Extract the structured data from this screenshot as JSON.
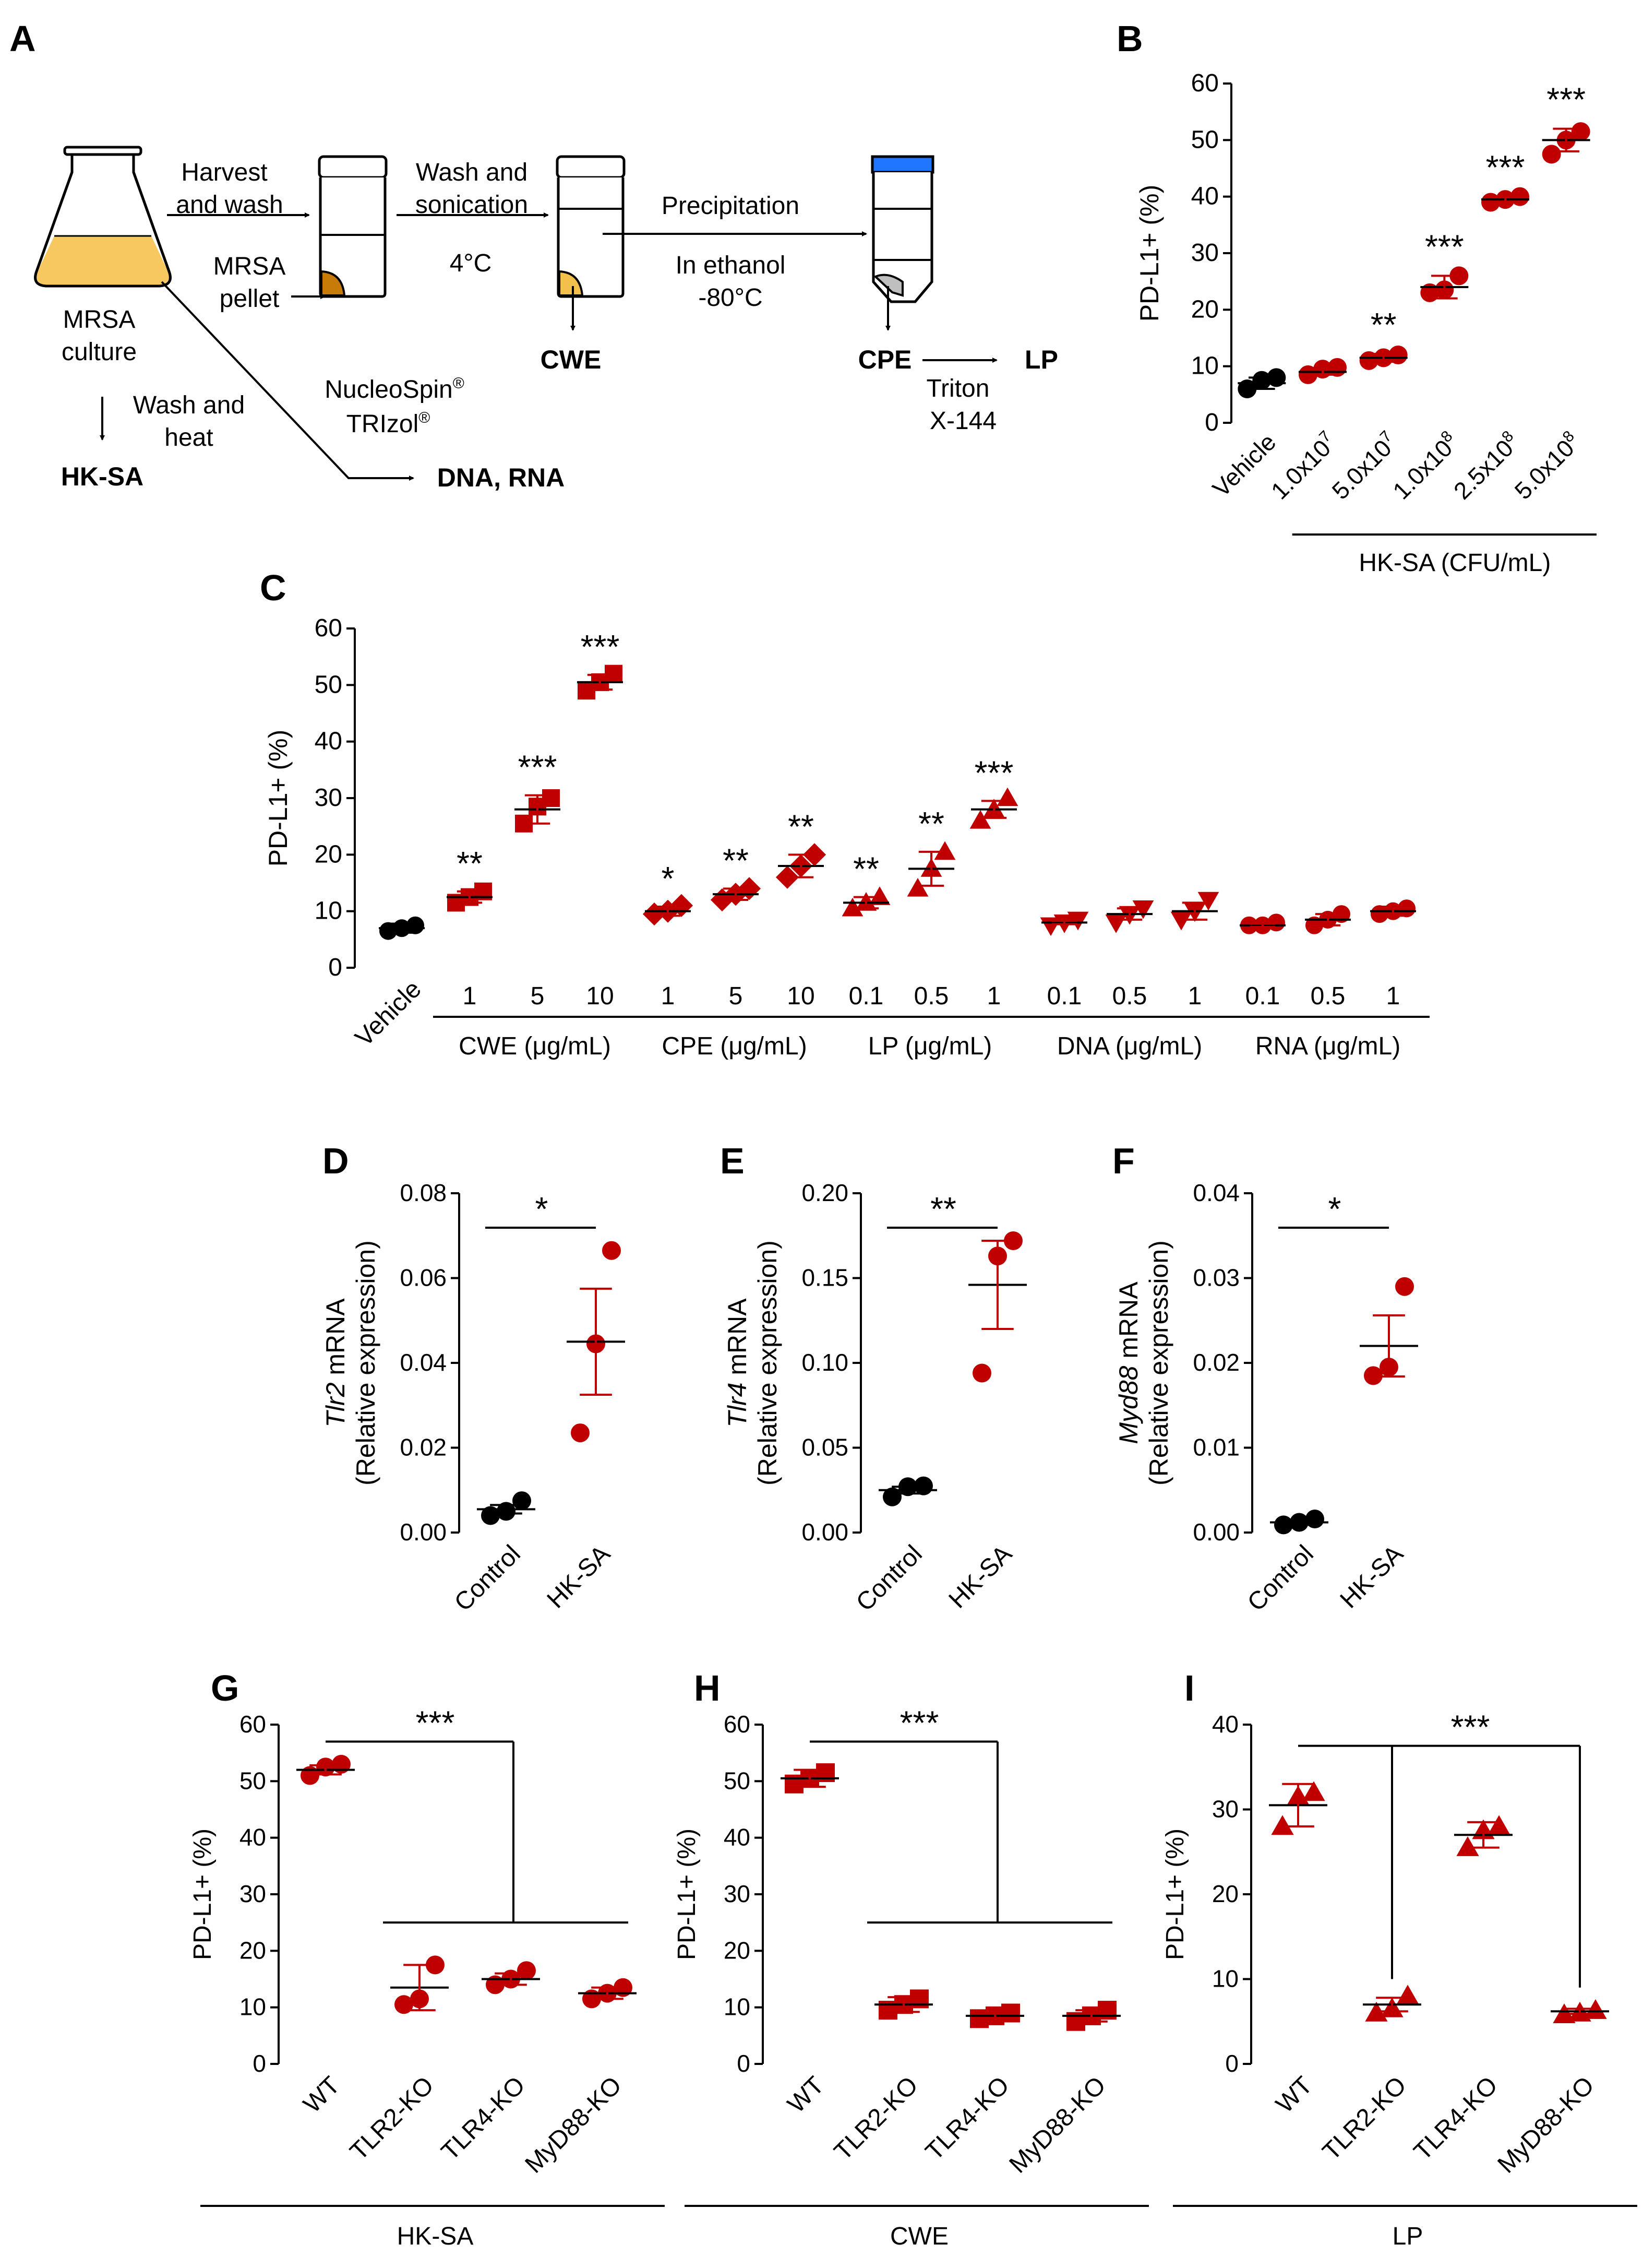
{
  "figure": {
    "panel_letters": {
      "A": "A",
      "B": "B",
      "C": "C",
      "D": "D",
      "E": "E",
      "F": "F",
      "G": "G",
      "H": "H",
      "I": "I"
    },
    "colors": {
      "red": "#c00000",
      "black": "#000000",
      "flask_fill": "#f6c85f",
      "pellet": "#c97b0a",
      "extract": "#f2c04b",
      "blue_cap": "#2176ff",
      "grey": "#bfbfbf"
    }
  },
  "schematic": {
    "flask_label": [
      "MRSA",
      "culture"
    ],
    "step1_label": [
      "Harvest",
      "and wash"
    ],
    "pellet_label": [
      "MRSA",
      "pellet"
    ],
    "step2_label": [
      "Wash and",
      "sonication"
    ],
    "step2_temp": "4°C",
    "step3_label": "Precipitation",
    "step3_sub": [
      "In ethanol",
      "-80°C"
    ],
    "cwe": "CWE",
    "cpe": "CPE",
    "lp": "LP",
    "triton": [
      "Triton",
      "X-144"
    ],
    "heat_label": [
      "Wash and",
      "heat"
    ],
    "hksa": "HK-SA",
    "kits": [
      "NucleoSpin",
      "TRIzol"
    ],
    "reg_mark": "®",
    "dna_rna": "DNA, RNA"
  },
  "chart_data": [
    {
      "panel": "B",
      "type": "scatter",
      "ylabel": "PD-L1+ (%)",
      "ylim": [
        0,
        60
      ],
      "yticks": [
        0,
        10,
        20,
        30,
        40,
        50,
        60
      ],
      "categories": [
        "Vehicle",
        "1.0x10^7",
        "5.0x10^7",
        "1.0x10^8",
        "2.5x10^8",
        "5.0x10^8"
      ],
      "category_display": [
        [
          "Vehicle",
          ""
        ],
        [
          "1.0x10",
          "7"
        ],
        [
          "5.0x10",
          "7"
        ],
        [
          "1.0x10",
          "8"
        ],
        [
          "2.5x10",
          "8"
        ],
        [
          "5.0x10",
          "8"
        ]
      ],
      "group_label": "HK-SA (CFU/mL)",
      "colors": [
        "black",
        "red",
        "red",
        "red",
        "red",
        "red"
      ],
      "means": [
        7,
        9,
        11.5,
        24,
        39.5,
        50
      ],
      "sems": [
        1,
        0.5,
        0.7,
        2,
        0.5,
        2
      ],
      "points": [
        [
          6,
          7.5,
          8
        ],
        [
          8.5,
          9.5,
          9.8
        ],
        [
          11,
          11.5,
          12
        ],
        [
          23,
          23.5,
          26
        ],
        [
          39,
          39.5,
          40
        ],
        [
          47.5,
          50,
          51.5
        ]
      ],
      "marker": "circle",
      "significance": [
        "",
        "",
        "**",
        "***",
        "***",
        "***"
      ]
    },
    {
      "panel": "C",
      "type": "scatter",
      "ylabel": "PD-L1+ (%)",
      "ylim": [
        0,
        60
      ],
      "yticks": [
        0,
        10,
        20,
        30,
        40,
        50,
        60
      ],
      "categories": [
        "Vehicle",
        "1",
        "5",
        "10",
        "1",
        "5",
        "10",
        "0.1",
        "0.5",
        "1",
        "0.1",
        "0.5",
        "1",
        "0.1",
        "0.5",
        "1"
      ],
      "groups": [
        {
          "label": "CWE (μg/mL)",
          "from": 1,
          "to": 3
        },
        {
          "label": "CPE (μg/mL)",
          "from": 4,
          "to": 6
        },
        {
          "label": "LP (μg/mL)",
          "from": 7,
          "to": 9
        },
        {
          "label": "DNA (μg/mL)",
          "from": 10,
          "to": 12
        },
        {
          "label": "RNA (μg/mL)",
          "from": 13,
          "to": 15
        }
      ],
      "markers": [
        "circle",
        "square",
        "square",
        "square",
        "diamond",
        "diamond",
        "diamond",
        "triangle",
        "triangle",
        "triangle",
        "tri_down",
        "tri_down",
        "tri_down",
        "circle",
        "circle",
        "circle"
      ],
      "colors": [
        "black",
        "red",
        "red",
        "red",
        "red",
        "red",
        "red",
        "red",
        "red",
        "red",
        "red",
        "red",
        "red",
        "red",
        "red",
        "red"
      ],
      "means": [
        7,
        12.5,
        28,
        50.5,
        10,
        13,
        18,
        11.5,
        17.5,
        28,
        8,
        9.5,
        10,
        7.5,
        8.5,
        10
      ],
      "sems": [
        0.8,
        1,
        2.5,
        1.3,
        0.8,
        1,
        2,
        1,
        3,
        1.5,
        0.3,
        1,
        1.5,
        0.3,
        1,
        0.8
      ],
      "points": [
        [
          6.5,
          7,
          7.5
        ],
        [
          11.5,
          12.5,
          13.5
        ],
        [
          25.5,
          28.5,
          30
        ],
        [
          49,
          50.5,
          52
        ],
        [
          9.5,
          10,
          11
        ],
        [
          12,
          13,
          14
        ],
        [
          16,
          18,
          20
        ],
        [
          10.5,
          11.5,
          12.5
        ],
        [
          14,
          17.5,
          20.5
        ],
        [
          26,
          28,
          30
        ],
        [
          7.5,
          8,
          8.5
        ],
        [
          8,
          9.5,
          10.5
        ],
        [
          8.5,
          10,
          12
        ],
        [
          7.5,
          7.5,
          8
        ],
        [
          7.5,
          8.5,
          9.5
        ],
        [
          9.5,
          10,
          10.5
        ]
      ],
      "significance": [
        "",
        "**",
        "***",
        "***",
        "*",
        "**",
        "**",
        "**",
        "**",
        "***",
        "",
        "",
        "",
        "",
        "",
        ""
      ]
    },
    {
      "panel": "D",
      "type": "scatter",
      "ylabel_italic": "Tlr2",
      "ylabel_rest": " mRNA",
      "ylabel2": "(Relative expression)",
      "ylim": [
        0,
        0.08
      ],
      "yticks": [
        0,
        0.02,
        0.04,
        0.06,
        0.08
      ],
      "ytick_labels": [
        "0.00",
        "0.02",
        "0.04",
        "0.06",
        "0.08"
      ],
      "categories": [
        "Control",
        "HK-SA"
      ],
      "colors": [
        "black",
        "red"
      ],
      "means": [
        0.0055,
        0.045
      ],
      "sems": [
        0.001,
        0.0125
      ],
      "points": [
        [
          0.004,
          0.005,
          0.0075
        ],
        [
          0.0235,
          0.0445,
          0.0665
        ]
      ],
      "significance": "*",
      "marker": "circle"
    },
    {
      "panel": "E",
      "type": "scatter",
      "ylabel_italic": "Tlr4",
      "ylabel_rest": " mRNA",
      "ylabel2": "(Relative expression)",
      "ylim": [
        0,
        0.2
      ],
      "yticks": [
        0,
        0.05,
        0.1,
        0.15,
        0.2
      ],
      "ytick_labels": [
        "0.00",
        "0.05",
        "0.10",
        "0.15",
        "0.20"
      ],
      "categories": [
        "Control",
        "HK-SA"
      ],
      "colors": [
        "black",
        "red"
      ],
      "means": [
        0.025,
        0.146
      ],
      "sems": [
        0.002,
        0.026
      ],
      "points": [
        [
          0.021,
          0.027,
          0.0275
        ],
        [
          0.094,
          0.163,
          0.172
        ]
      ],
      "significance": "**",
      "marker": "circle"
    },
    {
      "panel": "F",
      "type": "scatter",
      "ylabel_italic": "Myd88",
      "ylabel_rest": " mRNA",
      "ylabel2": "(Relative expression)",
      "ylim": [
        0,
        0.04
      ],
      "yticks": [
        0,
        0.01,
        0.02,
        0.03,
        0.04
      ],
      "ytick_labels": [
        "0.00",
        "0.01",
        "0.02",
        "0.03",
        "0.04"
      ],
      "categories": [
        "Control",
        "HK-SA"
      ],
      "colors": [
        "black",
        "red"
      ],
      "means": [
        0.0012,
        0.022
      ],
      "sems": [
        0.0003,
        0.0036
      ],
      "points": [
        [
          0.0009,
          0.0012,
          0.0016
        ],
        [
          0.0185,
          0.0195,
          0.029
        ]
      ],
      "significance": "*",
      "marker": "circle"
    },
    {
      "panel": "G",
      "type": "scatter",
      "ylabel": "PD-L1+ (%)",
      "ylim": [
        0,
        60
      ],
      "yticks": [
        0,
        10,
        20,
        30,
        40,
        50,
        60
      ],
      "categories": [
        "WT",
        "TLR2-KO",
        "TLR4-KO",
        "MyD88-KO"
      ],
      "group_label": "HK-SA",
      "marker": "circle",
      "means": [
        52,
        13.5,
        15,
        12.5
      ],
      "sems": [
        0.8,
        4,
        1,
        1
      ],
      "points": [
        [
          51,
          52.5,
          53
        ],
        [
          10.5,
          11.5,
          17.5
        ],
        [
          14,
          15,
          16.5
        ],
        [
          11.5,
          12.5,
          13.5
        ]
      ],
      "significance": "***"
    },
    {
      "panel": "H",
      "type": "scatter",
      "ylabel": "PD-L1+ (%)",
      "ylim": [
        0,
        60
      ],
      "yticks": [
        0,
        10,
        20,
        30,
        40,
        50,
        60
      ],
      "categories": [
        "WT",
        "TLR2-KO",
        "TLR4-KO",
        "MyD88-KO"
      ],
      "group_label": "CWE",
      "marker": "square",
      "means": [
        50.5,
        10.5,
        8.5,
        8.5
      ],
      "sems": [
        1.5,
        1.3,
        0.5,
        1
      ],
      "points": [
        [
          49.5,
          50.5,
          51.5
        ],
        [
          9.5,
          10.5,
          11.5
        ],
        [
          8,
          8.5,
          9
        ],
        [
          7.5,
          8.5,
          9.5
        ]
      ],
      "significance": "***"
    },
    {
      "panel": "I",
      "type": "scatter",
      "ylabel": "PD-L1+ (%)",
      "ylim": [
        0,
        40
      ],
      "yticks": [
        0,
        10,
        20,
        30,
        40
      ],
      "categories": [
        "WT",
        "TLR2-KO",
        "TLR4-KO",
        "MyD88-KO"
      ],
      "group_label": "LP",
      "marker": "triangle",
      "means": [
        30.5,
        7,
        27,
        6.2
      ],
      "sems": [
        2.5,
        0.8,
        1.5,
        0.3
      ],
      "points": [
        [
          28,
          31.5,
          32
        ],
        [
          6,
          6.5,
          8
        ],
        [
          25.5,
          27.5,
          28
        ],
        [
          5.8,
          6,
          6.3
        ]
      ],
      "significance": "***"
    }
  ]
}
